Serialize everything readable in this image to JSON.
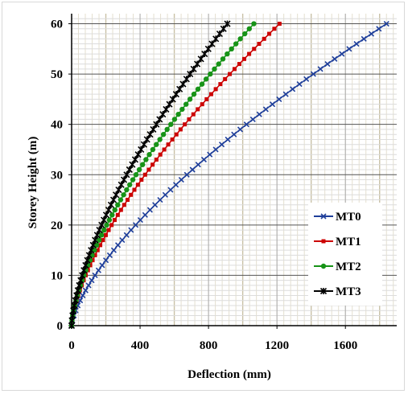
{
  "chart_data": {
    "type": "line",
    "xlabel": "Deflection (mm)",
    "ylabel": "Storey Height (m)",
    "xlim": [
      0,
      1900
    ],
    "ylim": [
      0,
      62
    ],
    "xticks": [
      0,
      400,
      800,
      1200,
      1600
    ],
    "yticks": [
      0,
      10,
      20,
      30,
      40,
      50,
      60
    ],
    "grid": true,
    "legend_position": "right-center",
    "series": [
      {
        "name": "MT0",
        "color": "#1f3f9a",
        "marker": "x",
        "x_at_top": 1840,
        "exponent": 1.45
      },
      {
        "name": "MT1",
        "color": "#cc0000",
        "marker": "square",
        "x_at_top": 1215,
        "exponent": 1.5
      },
      {
        "name": "MT2",
        "color": "#179317",
        "marker": "circle",
        "x_at_top": 1065,
        "exponent": 1.5
      },
      {
        "name": "MT3",
        "color": "#000000",
        "marker": "star",
        "x_at_top": 910,
        "exponent": 1.5
      }
    ],
    "y_values_step": 1,
    "y_top": 60
  }
}
